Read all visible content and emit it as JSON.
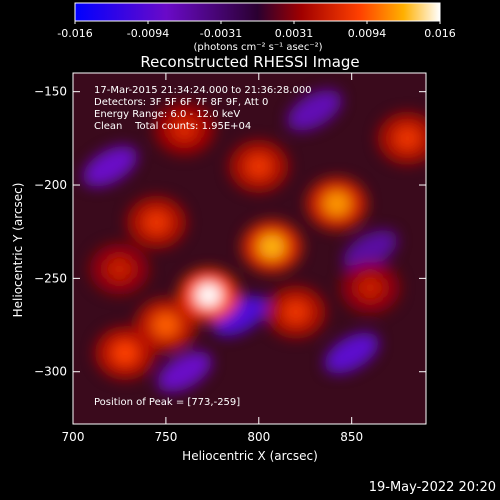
{
  "colorbar": {
    "ticks": [
      "-0.016",
      "-0.0094",
      "-0.0031",
      "0.0031",
      "0.0094",
      "0.016"
    ],
    "units": "(photons cm⁻² s⁻¹ asec⁻²)"
  },
  "title": "Reconstructed RHESSI Image",
  "annotations": {
    "line1": "17-Mar-2015 21:34:24.000 to 21:36:28.000",
    "line2": "Detectors: 3F 5F 6F 7F 8F 9F, Att 0",
    "line3": "Energy Range: 6.0 - 12.0 keV",
    "line4": "Clean    Total counts: 1.95E+04",
    "peak": "Position of Peak = [773,-259]"
  },
  "footer": {
    "timestamp": "19-May-2022 20:20"
  },
  "chart_data": {
    "type": "heatmap",
    "title": "Reconstructed RHESSI Image",
    "xlabel": "Heliocentric X (arcsec)",
    "ylabel": "Heliocentric Y (arcsec)",
    "xlim": [
      700,
      890
    ],
    "ylim": [
      -328,
      -140
    ],
    "x_ticks": [
      700,
      750,
      800,
      850
    ],
    "y_ticks": [
      -150,
      -200,
      -250,
      -300
    ],
    "colorbar_range": [
      -0.016,
      0.016
    ],
    "colormap": "blue-purple-red-yellow-white",
    "peak": [
      773,
      -259
    ],
    "sources": [
      {
        "x": 773,
        "y": -259,
        "value": 0.016
      },
      {
        "x": 807,
        "y": -233,
        "value": 0.013
      },
      {
        "x": 842,
        "y": -210,
        "value": 0.012
      },
      {
        "x": 750,
        "y": -275,
        "value": 0.01
      },
      {
        "x": 728,
        "y": -290,
        "value": 0.009
      },
      {
        "x": 820,
        "y": -268,
        "value": 0.008
      },
      {
        "x": 745,
        "y": -220,
        "value": 0.008
      },
      {
        "x": 800,
        "y": -190,
        "value": 0.008
      },
      {
        "x": 760,
        "y": -170,
        "value": 0.007
      },
      {
        "x": 880,
        "y": -175,
        "value": 0.008
      },
      {
        "x": 725,
        "y": -245,
        "value": 0.006
      },
      {
        "x": 860,
        "y": -255,
        "value": 0.006
      }
    ],
    "minima": [
      {
        "x": 790,
        "y": -270,
        "value": -0.01
      },
      {
        "x": 850,
        "y": -290,
        "value": -0.009
      },
      {
        "x": 760,
        "y": -300,
        "value": -0.008
      },
      {
        "x": 720,
        "y": -190,
        "value": -0.008
      },
      {
        "x": 830,
        "y": -160,
        "value": -0.007
      },
      {
        "x": 860,
        "y": -235,
        "value": -0.006
      }
    ]
  }
}
